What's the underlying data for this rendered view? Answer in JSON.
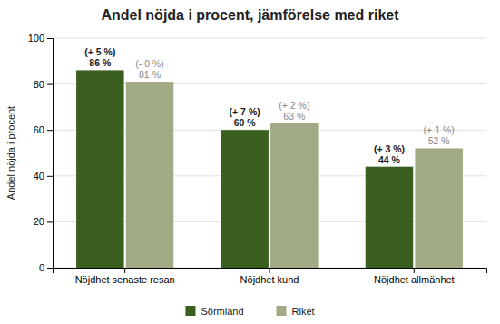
{
  "chart_data": {
    "type": "bar",
    "title": "Andel nöjda i procent, jämförelse med riket",
    "ylabel": "Andel nöjda i procent",
    "categories": [
      "Nöjdhet senaste resan",
      "Nöjdhet kund",
      "Nöjdhet allmänhet"
    ],
    "series": [
      {
        "name": "Sörmland",
        "color": "#3a5f1e",
        "values": [
          86,
          60,
          44
        ],
        "value_labels": [
          "86 %",
          "60 %",
          "44 %"
        ],
        "change_labels": [
          "(+ 5 %)",
          "(+ 7 %)",
          "(+ 3 %)"
        ]
      },
      {
        "name": "Riket",
        "color": "#a0aa84",
        "values": [
          81,
          63,
          52
        ],
        "value_labels": [
          "81 %",
          "63 %",
          "52 %"
        ],
        "change_labels": [
          "(- 0 %)",
          "(+ 2 %)",
          "(+ 1 %)"
        ]
      }
    ],
    "ylim": [
      0,
      100
    ],
    "yticks": [
      0,
      20,
      40,
      60,
      80,
      100
    ],
    "grid": true,
    "legend": "bottom",
    "data_labels": true
  }
}
